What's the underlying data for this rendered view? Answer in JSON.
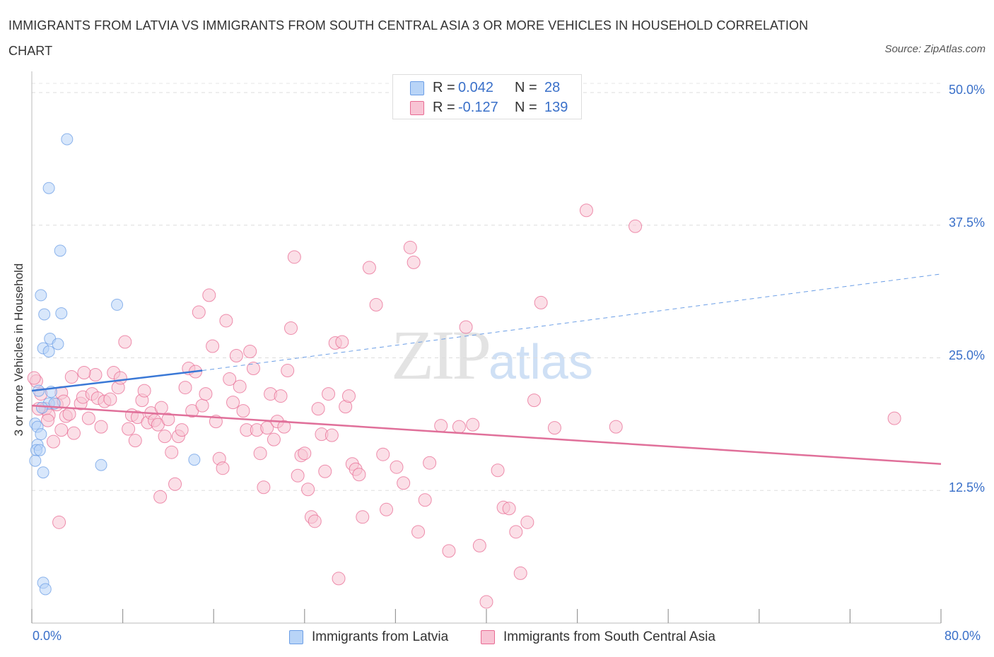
{
  "header": {
    "title": "IMMIGRANTS FROM LATVIA VS IMMIGRANTS FROM SOUTH CENTRAL ASIA 3 OR MORE VEHICLES IN HOUSEHOLD CORRELATION CHART",
    "source": "Source: ZipAtlas.com"
  },
  "watermark": {
    "zip": "ZIP",
    "atlas": "atlas"
  },
  "legend": {
    "rows": [
      {
        "r_label": "R =",
        "r_value": "0.042",
        "n_label": "N =",
        "n_value": "28",
        "color": "#b8d4f7"
      },
      {
        "r_label": "R =",
        "r_value": "-0.127",
        "n_label": "N =",
        "n_value": "139",
        "color": "#f8c4d4"
      }
    ]
  },
  "bottom_legend": {
    "items": [
      {
        "label": "Immigrants from Latvia",
        "color": "#b8d4f7"
      },
      {
        "label": "Immigrants from South Central Asia",
        "color": "#f8c4d4"
      }
    ]
  },
  "axes": {
    "x_min_label": "0.0%",
    "x_max_label": "80.0%",
    "y_label": "3 or more Vehicles in Household",
    "y_ticks": [
      "50.0%",
      "37.5%",
      "25.0%",
      "12.5%"
    ]
  },
  "chart_data": {
    "type": "scatter",
    "xlabel": "",
    "ylabel": "3 or more Vehicles in Household",
    "xlim": [
      0,
      80
    ],
    "ylim": [
      0,
      52
    ],
    "y_ticks": [
      12.5,
      25.0,
      37.5,
      50.0
    ],
    "grid": true,
    "legend_position": "top-center",
    "series": [
      {
        "name": "Immigrants from Latvia",
        "color": "#6b9ee6",
        "fill": "#b8d4f7",
        "trend": {
          "x": [
            0,
            15
          ],
          "y": [
            21.9,
            23.8
          ],
          "dashed_to": [
            80,
            32.9
          ]
        },
        "points": [
          [
            3.1,
            45.6
          ],
          [
            1.5,
            41.0
          ],
          [
            2.5,
            35.1
          ],
          [
            0.8,
            30.9
          ],
          [
            2.6,
            29.2
          ],
          [
            1.1,
            29.1
          ],
          [
            7.5,
            30.0
          ],
          [
            1.6,
            26.8
          ],
          [
            2.3,
            26.3
          ],
          [
            1.0,
            25.9
          ],
          [
            1.5,
            25.6
          ],
          [
            0.6,
            21.9
          ],
          [
            1.7,
            21.8
          ],
          [
            1.5,
            20.7
          ],
          [
            2.0,
            20.7
          ],
          [
            0.9,
            20.3
          ],
          [
            0.3,
            18.8
          ],
          [
            0.5,
            18.5
          ],
          [
            0.8,
            17.8
          ],
          [
            0.5,
            16.8
          ],
          [
            0.4,
            16.3
          ],
          [
            0.7,
            16.3
          ],
          [
            0.3,
            15.3
          ],
          [
            1.0,
            14.2
          ],
          [
            6.1,
            14.9
          ],
          [
            14.3,
            15.4
          ],
          [
            1.0,
            3.8
          ],
          [
            1.2,
            3.2
          ]
        ]
      },
      {
        "name": "Immigrants from South Central Asia",
        "color": "#e86b93",
        "fill": "#f8c4d4",
        "trend": {
          "x": [
            0,
            80
          ],
          "y": [
            20.5,
            15.0
          ]
        },
        "points": [
          [
            0.4,
            22.8
          ],
          [
            0.8,
            21.6
          ],
          [
            1.2,
            20.2
          ],
          [
            1.5,
            19.6
          ],
          [
            2.2,
            20.6
          ],
          [
            2.6,
            21.7
          ],
          [
            3.0,
            19.5
          ],
          [
            3.3,
            19.7
          ],
          [
            3.7,
            17.9
          ],
          [
            2.6,
            18.2
          ],
          [
            1.9,
            17.1
          ],
          [
            1.4,
            19.1
          ],
          [
            4.3,
            20.7
          ],
          [
            4.5,
            21.3
          ],
          [
            5.0,
            19.3
          ],
          [
            5.3,
            21.6
          ],
          [
            5.6,
            23.4
          ],
          [
            4.6,
            23.6
          ],
          [
            5.8,
            21.2
          ],
          [
            6.1,
            18.5
          ],
          [
            6.4,
            20.9
          ],
          [
            6.9,
            21.1
          ],
          [
            7.2,
            23.6
          ],
          [
            7.6,
            22.2
          ],
          [
            7.8,
            23.1
          ],
          [
            8.2,
            26.5
          ],
          [
            8.5,
            18.3
          ],
          [
            8.8,
            19.6
          ],
          [
            9.1,
            17.2
          ],
          [
            9.3,
            19.4
          ],
          [
            9.7,
            21.0
          ],
          [
            9.9,
            21.9
          ],
          [
            10.2,
            18.9
          ],
          [
            10.5,
            19.8
          ],
          [
            10.8,
            19.1
          ],
          [
            11.1,
            18.7
          ],
          [
            11.4,
            20.3
          ],
          [
            11.7,
            17.6
          ],
          [
            12.0,
            19.2
          ],
          [
            12.3,
            16.1
          ],
          [
            12.6,
            13.1
          ],
          [
            11.3,
            11.9
          ],
          [
            12.9,
            17.6
          ],
          [
            13.2,
            18.2
          ],
          [
            13.5,
            22.2
          ],
          [
            13.8,
            24.0
          ],
          [
            14.1,
            20.0
          ],
          [
            14.4,
            23.7
          ],
          [
            14.7,
            29.3
          ],
          [
            15.0,
            20.5
          ],
          [
            15.3,
            21.6
          ],
          [
            15.6,
            30.9
          ],
          [
            15.9,
            26.1
          ],
          [
            16.2,
            19.0
          ],
          [
            16.5,
            15.5
          ],
          [
            16.8,
            14.6
          ],
          [
            17.1,
            28.5
          ],
          [
            17.4,
            23.0
          ],
          [
            17.7,
            20.8
          ],
          [
            18.0,
            25.2
          ],
          [
            18.3,
            22.3
          ],
          [
            18.6,
            20.0
          ],
          [
            18.9,
            18.2
          ],
          [
            19.2,
            25.6
          ],
          [
            19.5,
            24.0
          ],
          [
            19.8,
            18.2
          ],
          [
            20.1,
            16.0
          ],
          [
            20.4,
            12.8
          ],
          [
            20.7,
            18.4
          ],
          [
            21.0,
            21.6
          ],
          [
            21.3,
            17.3
          ],
          [
            21.6,
            19.0
          ],
          [
            21.9,
            21.4
          ],
          [
            22.2,
            18.5
          ],
          [
            22.5,
            23.8
          ],
          [
            22.8,
            27.8
          ],
          [
            23.1,
            34.5
          ],
          [
            23.4,
            13.9
          ],
          [
            23.7,
            15.8
          ],
          [
            24.0,
            16.0
          ],
          [
            24.3,
            12.6
          ],
          [
            24.6,
            10.0
          ],
          [
            24.9,
            9.6
          ],
          [
            25.2,
            20.2
          ],
          [
            25.5,
            17.8
          ],
          [
            25.8,
            14.3
          ],
          [
            26.1,
            21.6
          ],
          [
            26.4,
            17.7
          ],
          [
            26.7,
            26.4
          ],
          [
            27.0,
            4.2
          ],
          [
            27.3,
            26.5
          ],
          [
            27.6,
            20.4
          ],
          [
            27.9,
            21.4
          ],
          [
            28.2,
            15.0
          ],
          [
            28.5,
            14.5
          ],
          [
            28.8,
            14.0
          ],
          [
            29.1,
            10.0
          ],
          [
            29.7,
            33.5
          ],
          [
            30.3,
            30.0
          ],
          [
            30.9,
            15.9
          ],
          [
            31.2,
            10.7
          ],
          [
            32.1,
            14.7
          ],
          [
            32.7,
            13.2
          ],
          [
            33.3,
            35.4
          ],
          [
            33.6,
            34.0
          ],
          [
            34.0,
            8.6
          ],
          [
            34.6,
            11.6
          ],
          [
            35.0,
            15.1
          ],
          [
            36.0,
            18.6
          ],
          [
            36.7,
            6.8
          ],
          [
            37.6,
            18.5
          ],
          [
            38.2,
            27.9
          ],
          [
            38.8,
            18.7
          ],
          [
            39.4,
            7.3
          ],
          [
            40.0,
            2.0
          ],
          [
            41.0,
            14.4
          ],
          [
            41.5,
            10.9
          ],
          [
            42.0,
            10.8
          ],
          [
            42.6,
            8.6
          ],
          [
            43.0,
            4.7
          ],
          [
            43.6,
            9.5
          ],
          [
            44.2,
            21.0
          ],
          [
            44.8,
            30.2
          ],
          [
            46.0,
            18.4
          ],
          [
            48.8,
            38.9
          ],
          [
            51.4,
            18.5
          ],
          [
            53.1,
            37.4
          ],
          [
            75.9,
            19.3
          ],
          [
            0.2,
            23.1
          ],
          [
            0.6,
            20.2
          ],
          [
            2.4,
            9.5
          ],
          [
            3.5,
            23.2
          ],
          [
            2.8,
            20.9
          ]
        ]
      }
    ]
  }
}
